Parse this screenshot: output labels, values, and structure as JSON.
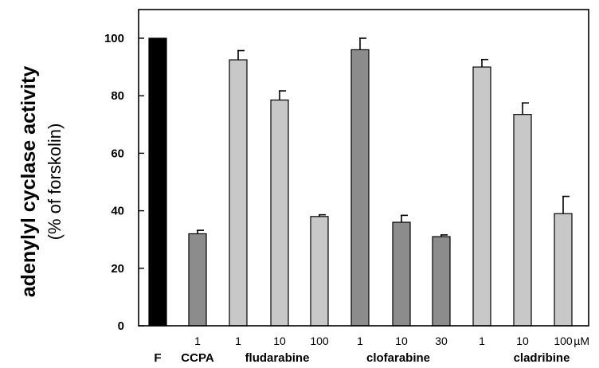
{
  "chart_data": {
    "type": "bar",
    "ylabel": "adenylyl cyclase activity",
    "ylabel_sub": "(% of forskolin)",
    "ylim": [
      0,
      110
    ],
    "yticks": [
      0,
      20,
      40,
      60,
      80,
      100
    ],
    "colors": {
      "F": "#000000",
      "CCPA": "#8c8c8c",
      "fludarabine": "#c8c8c8",
      "clofarabine": "#8c8c8c",
      "cladribine": "#c8c8c8"
    },
    "bars": [
      {
        "dose": "",
        "group": "F",
        "value": 100,
        "error": 0
      },
      {
        "dose": "1",
        "group": "CCPA",
        "value": 32,
        "error": 1.2
      },
      {
        "dose": "1",
        "group": "fludarabine",
        "value": 92.5,
        "error": 3.2
      },
      {
        "dose": "10",
        "group": "fludarabine",
        "value": 78.5,
        "error": 3.2
      },
      {
        "dose": "100",
        "group": "fludarabine",
        "value": 38,
        "error": 0.6
      },
      {
        "dose": "1",
        "group": "clofarabine",
        "value": 96,
        "error": 4
      },
      {
        "dose": "10",
        "group": "clofarabine",
        "value": 36,
        "error": 2.4
      },
      {
        "dose": "30",
        "group": "clofarabine",
        "value": 31,
        "error": 0.6
      },
      {
        "dose": "1",
        "group": "cladribine",
        "value": 90,
        "error": 2.6
      },
      {
        "dose": "10",
        "group": "cladribine",
        "value": 73.5,
        "error": 4
      },
      {
        "dose": "100",
        "group": "cladribine",
        "value": 39,
        "error": 6
      }
    ],
    "dose_unit": "µM",
    "group_labels": [
      "F",
      "CCPA",
      "fludarabine",
      "clofarabine",
      "cladribine"
    ]
  }
}
